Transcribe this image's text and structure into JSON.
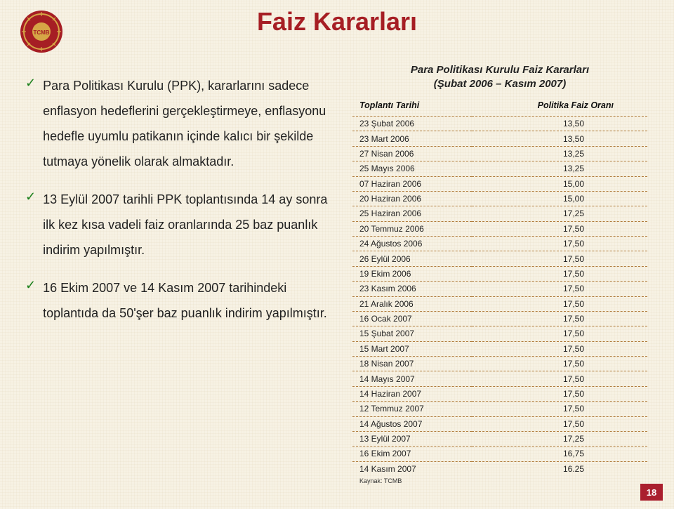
{
  "title": "Faiz Kararları",
  "logo": {
    "bg": "#a61e24",
    "ring": "#d6a646",
    "text": "TCMB"
  },
  "subheading_line1": "Para Politikası Kurulu Faiz Kararları",
  "subheading_line2": "(Şubat 2006 – Kasım 2007)",
  "bullets": [
    "Para Politikası Kurulu (PPK), kararlarını sadece enflasyon hedeflerini gerçekleştirmeye, enflasyonu hedefle uyumlu patikanın içinde kalıcı bir şekilde tutmaya yönelik olarak almaktadır.",
    "13 Eylül 2007 tarihli PPK toplantısında 14 ay sonra ilk kez kısa vadeli faiz oranlarında 25 baz puanlık indirim yapılmıştır.",
    "16 Ekim 2007  ve 14 Kasım 2007 tarihindeki toplantıda da 50'şer baz puanlık indirim yapılmıştır."
  ],
  "table": {
    "headers": [
      "Toplantı Tarihi",
      "Politika Faiz Oranı"
    ],
    "rows": [
      [
        "23 Şubat 2006",
        "13,50"
      ],
      [
        "23 Mart 2006",
        "13,50"
      ],
      [
        "27 Nisan 2006",
        "13,25"
      ],
      [
        "25 Mayıs 2006",
        "13,25"
      ],
      [
        "07 Haziran 2006",
        "15,00"
      ],
      [
        "20 Haziran 2006",
        "15,00"
      ],
      [
        "25 Haziran 2006",
        "17,25"
      ],
      [
        "20 Temmuz 2006",
        "17,50"
      ],
      [
        "24 Ağustos 2006",
        "17,50"
      ],
      [
        "26 Eylül 2006",
        "17,50"
      ],
      [
        "19 Ekim 2006",
        "17,50"
      ],
      [
        "23 Kasım 2006",
        "17,50"
      ],
      [
        "21 Aralık 2006",
        "17,50"
      ],
      [
        "16 Ocak 2007",
        "17,50"
      ],
      [
        "15 Şubat 2007",
        "17,50"
      ],
      [
        "15 Mart 2007",
        "17,50"
      ],
      [
        "18 Nisan 2007",
        "17,50"
      ],
      [
        "14 Mayıs 2007",
        "17,50"
      ],
      [
        "14 Haziran 2007",
        "17,50"
      ],
      [
        "12 Temmuz 2007",
        "17,50"
      ],
      [
        "14 Ağustos 2007",
        "17,50"
      ],
      [
        "13 Eylül 2007",
        "17,25"
      ],
      [
        "16 Ekim 2007",
        "16,75"
      ],
      [
        "14 Kasım 2007",
        "16.25"
      ]
    ],
    "border_color": "#b07c3c"
  },
  "source": "Kaynak: TCMB",
  "page_number": "18",
  "colors": {
    "title": "#a61e24",
    "check": "#1a7f1a",
    "page_bg": "#aa1f2e"
  }
}
